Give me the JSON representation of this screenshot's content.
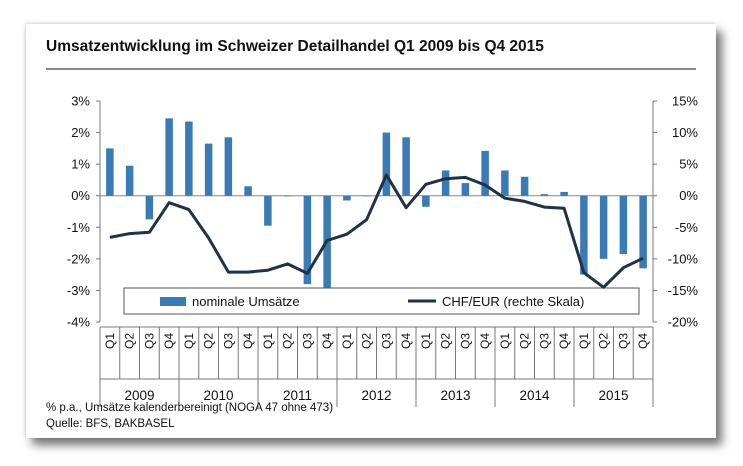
{
  "title": "Umsatzentwicklung im Schweizer Detailhandel Q1 2009 bis Q4 2015",
  "footnote_line1": "% p.a., Umsätze kalenderbereinigt (NOGA 47 ohne 473)",
  "footnote_line2": "Quelle: BFS, BAKBASEL",
  "chart_data": {
    "type": "bar",
    "categories": [
      "Q1",
      "Q2",
      "Q3",
      "Q4",
      "Q1",
      "Q2",
      "Q3",
      "Q4",
      "Q1",
      "Q2",
      "Q3",
      "Q4",
      "Q1",
      "Q2",
      "Q3",
      "Q4",
      "Q1",
      "Q2",
      "Q3",
      "Q4",
      "Q1",
      "Q2",
      "Q3",
      "Q4",
      "Q1",
      "Q2",
      "Q3",
      "Q4"
    ],
    "years": [
      "2009",
      "2010",
      "2011",
      "2012",
      "2013",
      "2014",
      "2015"
    ],
    "series": [
      {
        "name": "nominale Umsätze",
        "kind": "bar",
        "axis": "left",
        "color": "#3a7ab5",
        "values": [
          1.5,
          0.95,
          -0.75,
          2.45,
          2.35,
          1.65,
          1.85,
          0.3,
          -0.95,
          -0.02,
          -2.8,
          -3.0,
          -0.15,
          -0.02,
          2.0,
          1.85,
          -0.35,
          0.8,
          0.4,
          1.42,
          0.8,
          0.6,
          0.05,
          0.12,
          -2.5,
          -2.0,
          -1.85,
          -2.3
        ]
      },
      {
        "name": "CHF/EUR (rechte Skala)",
        "kind": "line",
        "axis": "right",
        "color": "#1f3344",
        "values": [
          -6.6,
          -6.0,
          -5.8,
          -1.1,
          -2.2,
          -6.7,
          -12.1,
          -12.1,
          -11.8,
          -10.8,
          -12.3,
          -7.1,
          -6.1,
          -3.8,
          3.3,
          -1.9,
          1.8,
          2.7,
          2.9,
          1.7,
          -0.4,
          -0.9,
          -1.8,
          -2.0,
          -12.2,
          -14.5,
          -11.4,
          -9.9
        ]
      }
    ],
    "ylim_left": [
      -4,
      3
    ],
    "ylim_right": [
      -20,
      15
    ],
    "yticks_left": [
      "3%",
      "2%",
      "1%",
      "0%",
      "-1%",
      "-2%",
      "-3%",
      "-4%"
    ],
    "yticks_right": [
      "15%",
      "10%",
      "5%",
      "0%",
      "-5%",
      "-10%",
      "-15%",
      "-20%"
    ],
    "legend_position": "bottom-inside",
    "grid": false
  }
}
